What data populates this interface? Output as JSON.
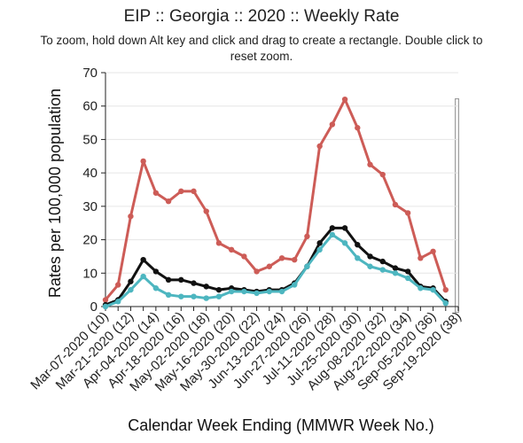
{
  "chart_data": {
    "type": "line",
    "title": "EIP :: Georgia :: 2020 :: Weekly Rate",
    "subtitle": "To zoom, hold down Alt key and click and drag to create a rectangle. Double click to reset zoom.",
    "xlabel": "Calendar Week Ending (MMWR Week No.)",
    "ylabel": "Rates per 100,000 population",
    "ylim": [
      0,
      70
    ],
    "yticks": [
      0,
      10,
      20,
      30,
      40,
      50,
      60,
      70
    ],
    "grid": true,
    "x_tick_labels": [
      "Mar-07-2020 (10)",
      "Mar-21-2020 (12)",
      "Apr-04-2020 (14)",
      "Apr-18-2020 (16)",
      "May-02-2020 (18)",
      "May-16-2020 (20)",
      "May-30-2020 (22)",
      "Jun-13-2020 (24)",
      "Jun-27-2020 (26)",
      "Jul-11-2020 (28)",
      "Jul-25-2020 (30)",
      "Aug-08-2020 (32)",
      "Aug-22-2020 (34)",
      "Sep-05-2020 (36)",
      "Sep-19-2020 (38)"
    ],
    "weeks": [
      10,
      11,
      12,
      13,
      14,
      15,
      16,
      17,
      18,
      19,
      20,
      21,
      22,
      23,
      24,
      25,
      26,
      27,
      28,
      29,
      30,
      31,
      32,
      33,
      34,
      35,
      36,
      37,
      38
    ],
    "series": [
      {
        "color": "#cd5c57",
        "values": [
          2,
          6.5,
          27,
          43.5,
          34,
          31.5,
          34.5,
          34.5,
          28.5,
          19,
          17,
          15,
          10.5,
          12,
          14.5,
          14,
          21,
          48,
          54.5,
          62,
          53.5,
          42.5,
          39.5,
          30.5,
          28,
          14.5,
          16.5,
          5,
          null
        ]
      },
      {
        "color": "#111111",
        "values": [
          0.5,
          2,
          7.5,
          14,
          10.5,
          8,
          8,
          7,
          6,
          5,
          5.5,
          5,
          4.5,
          5,
          5,
          7,
          12,
          19,
          23.5,
          23.5,
          18.5,
          15,
          13.5,
          11.5,
          10.5,
          6,
          5.5,
          1.5,
          null
        ]
      },
      {
        "color": "#4db6c0",
        "values": [
          0,
          1.5,
          5,
          9,
          5.5,
          3.5,
          3,
          3,
          2.5,
          3,
          4.5,
          4.5,
          4,
          4.5,
          4.5,
          6.5,
          12,
          17,
          21.5,
          19,
          14.5,
          12,
          11,
          10,
          8.5,
          5.5,
          5,
          1,
          null
        ]
      }
    ]
  }
}
